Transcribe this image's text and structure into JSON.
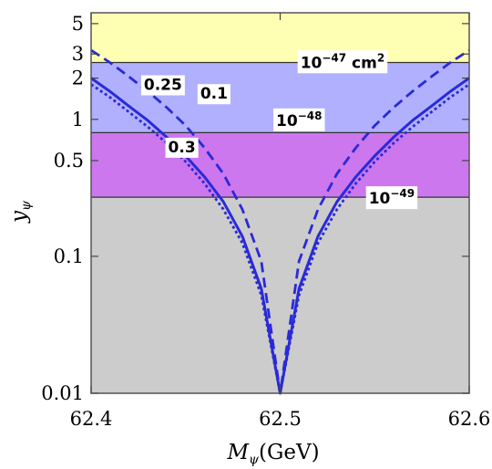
{
  "chart_data": {
    "type": "line",
    "title": "",
    "xlabel": {
      "main": "M",
      "sub": "ψ",
      "unit": "(GeV)"
    },
    "ylabel": {
      "main": "y",
      "sub": "ψ"
    },
    "xlim": [
      62.4,
      62.6
    ],
    "ylim": [
      0.01,
      6
    ],
    "y_scale": "log",
    "x_ticks": [
      {
        "value": 62.4,
        "label": "62.4"
      },
      {
        "value": 62.5,
        "label": "62.5"
      },
      {
        "value": 62.6,
        "label": "62.6"
      }
    ],
    "y_ticks": [
      {
        "value": 0.01,
        "label": "0.01"
      },
      {
        "value": 0.1,
        "label": "0.1"
      },
      {
        "value": 0.5,
        "label": "0.5"
      },
      {
        "value": 1,
        "label": "1"
      },
      {
        "value": 2,
        "label": "2"
      },
      {
        "value": 3,
        "label": "3"
      },
      {
        "value": 5,
        "label": "5"
      }
    ],
    "bands": [
      {
        "name": "10^-49",
        "y_from": 0.01,
        "y_to": 0.27,
        "color": "#cccccc"
      },
      {
        "name": "10^-48",
        "y_from": 0.27,
        "y_to": 0.8,
        "color": "#cc77ee"
      },
      {
        "name": "",
        "y_from": 0.8,
        "y_to": 2.6,
        "color": "#b0b0ff"
      },
      {
        "name": "10^-47",
        "y_from": 2.6,
        "y_to": 6,
        "color": "#ffffb3"
      }
    ],
    "band_labels": [
      {
        "base": "10",
        "exp": "−47",
        "suffix": " cm",
        "suffix_exp": "2",
        "x": 62.533,
        "y": 2.65
      },
      {
        "base": "10",
        "exp": "−48",
        "suffix": "",
        "suffix_exp": "",
        "x": 62.51,
        "y": 1.0
      },
      {
        "base": "10",
        "exp": "−49",
        "suffix": "",
        "suffix_exp": "",
        "x": 62.559,
        "y": 0.27
      }
    ],
    "series": [
      {
        "name": "0.1",
        "style": "dashed",
        "color": "#2a2ad8",
        "x": [
          62.4,
          62.41,
          62.42,
          62.43,
          62.44,
          62.45,
          62.46,
          62.47,
          62.48,
          62.49,
          62.5,
          62.51,
          62.52,
          62.53,
          62.54,
          62.55,
          62.56,
          62.57,
          62.58,
          62.59,
          62.6
        ],
        "y": [
          3.2,
          2.6,
          2.05,
          1.6,
          1.22,
          0.9,
          0.62,
          0.4,
          0.22,
          0.092,
          0.01,
          0.092,
          0.22,
          0.4,
          0.62,
          0.9,
          1.22,
          1.6,
          2.05,
          2.6,
          3.2
        ]
      },
      {
        "name": "0.25",
        "style": "solid",
        "color": "#2a2ad8",
        "x": [
          62.4,
          62.41,
          62.42,
          62.43,
          62.44,
          62.45,
          62.46,
          62.47,
          62.48,
          62.49,
          62.5,
          62.51,
          62.52,
          62.53,
          62.54,
          62.55,
          62.56,
          62.57,
          62.58,
          62.59,
          62.6
        ],
        "y": [
          2.0,
          1.6,
          1.25,
          0.98,
          0.74,
          0.54,
          0.38,
          0.25,
          0.14,
          0.058,
          0.01,
          0.058,
          0.14,
          0.25,
          0.38,
          0.54,
          0.74,
          0.98,
          1.25,
          1.6,
          2.0
        ]
      },
      {
        "name": "0.3",
        "style": "dotted",
        "color": "#2a2ad8",
        "x": [
          62.4,
          62.41,
          62.42,
          62.43,
          62.44,
          62.45,
          62.46,
          62.47,
          62.48,
          62.49,
          62.5,
          62.51,
          62.52,
          62.53,
          62.54,
          62.55,
          62.56,
          62.57,
          62.58,
          62.59,
          62.6
        ],
        "y": [
          1.8,
          1.45,
          1.13,
          0.88,
          0.67,
          0.49,
          0.34,
          0.22,
          0.125,
          0.052,
          0.01,
          0.052,
          0.125,
          0.22,
          0.34,
          0.49,
          0.67,
          0.88,
          1.13,
          1.45,
          1.8
        ]
      }
    ],
    "curve_labels": [
      {
        "text": "0.25",
        "x": 62.438,
        "y": 1.8
      },
      {
        "text": "0.1",
        "x": 62.465,
        "y": 1.55
      },
      {
        "text": "0.3",
        "x": 62.448,
        "y": 0.63
      }
    ]
  }
}
